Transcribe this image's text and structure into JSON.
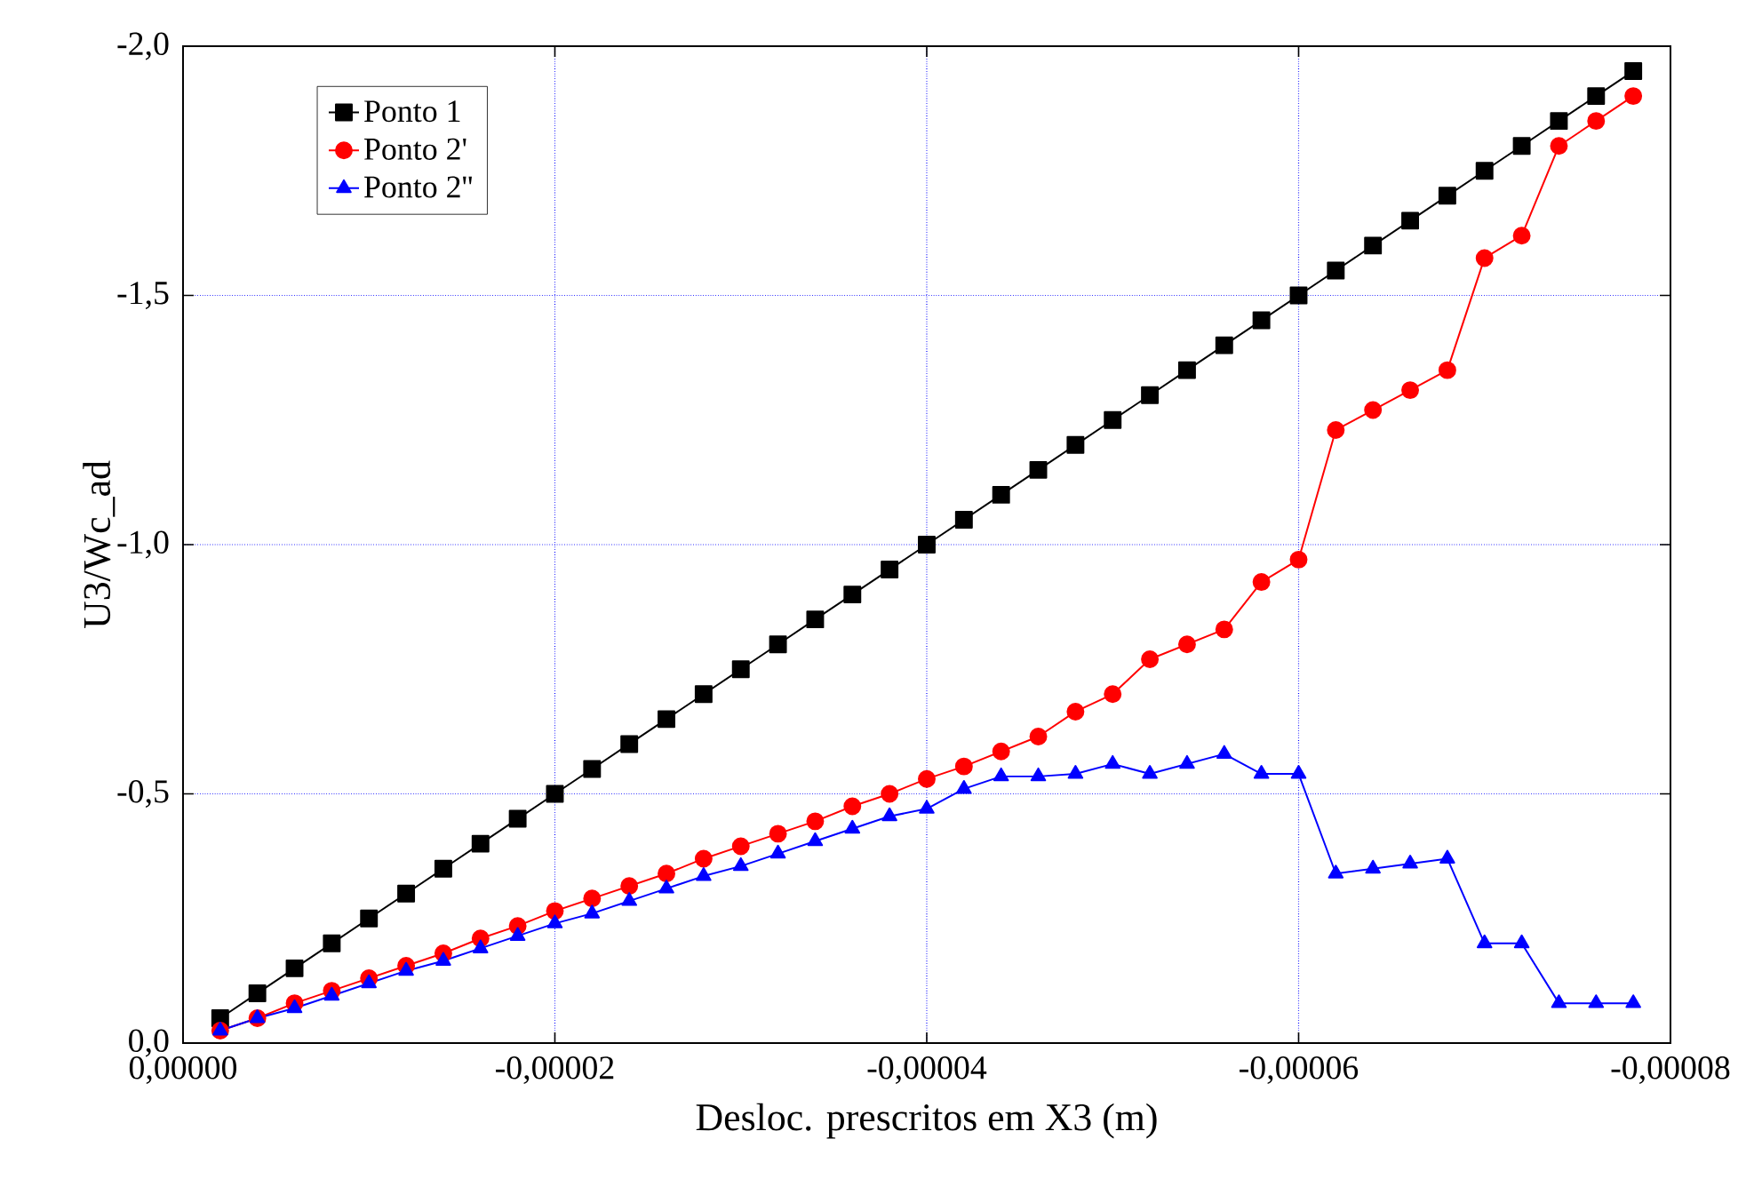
{
  "chart_data": {
    "type": "line",
    "xlabel": "Desloc. prescritos em X3 (m)",
    "ylabel": "U3/Wc_ad",
    "xlim": [
      0,
      -8e-05
    ],
    "ylim": [
      0,
      -2.0
    ],
    "xticks": [
      {
        "value": 0,
        "label": "0,00000"
      },
      {
        "value": -2e-05,
        "label": "-0,00002"
      },
      {
        "value": -4e-05,
        "label": "-0,00004"
      },
      {
        "value": -6e-05,
        "label": "-0,00006"
      },
      {
        "value": -8e-05,
        "label": "-0,00008"
      }
    ],
    "yticks": [
      {
        "value": 0,
        "label": "0,0"
      },
      {
        "value": -0.5,
        "label": "-0,5"
      },
      {
        "value": -1.0,
        "label": "-1,0"
      },
      {
        "value": -1.5,
        "label": "-1,5"
      },
      {
        "value": -2.0,
        "label": "-2,0"
      }
    ],
    "x": [
      -2e-06,
      -4e-06,
      -6e-06,
      -8e-06,
      -1e-05,
      -1.2e-05,
      -1.4e-05,
      -1.6e-05,
      -1.8e-05,
      -2e-05,
      -2.2e-05,
      -2.4e-05,
      -2.6e-05,
      -2.8e-05,
      -3e-05,
      -3.2e-05,
      -3.4e-05,
      -3.6e-05,
      -3.8e-05,
      -4e-05,
      -4.2e-05,
      -4.4e-05,
      -4.6e-05,
      -4.8e-05,
      -5e-05,
      -5.2e-05,
      -5.4e-05,
      -5.6e-05,
      -5.8e-05,
      -6e-05,
      -6.2e-05,
      -6.4e-05,
      -6.6e-05,
      -6.8e-05,
      -7e-05,
      -7.2e-05,
      -7.4e-05,
      -7.6e-05,
      -7.8e-05
    ],
    "grid": true,
    "legend": "top left",
    "line_style": "solid",
    "series": [
      {
        "name": "Ponto 1",
        "color": "#000000",
        "marker": "square",
        "values": [
          -0.05,
          -0.1,
          -0.15,
          -0.2,
          -0.25,
          -0.3,
          -0.35,
          -0.4,
          -0.45,
          -0.5,
          -0.55,
          -0.6,
          -0.65,
          -0.7,
          -0.75,
          -0.8,
          -0.85,
          -0.9,
          -0.95,
          -1.0,
          -1.05,
          -1.1,
          -1.15,
          -1.2,
          -1.25,
          -1.3,
          -1.35,
          -1.4,
          -1.45,
          -1.5,
          -1.55,
          -1.6,
          -1.65,
          -1.7,
          -1.75,
          -1.8,
          -1.85,
          -1.9,
          -1.95
        ]
      },
      {
        "name": "Ponto 2'",
        "color": "#ff0000",
        "marker": "circle",
        "values": [
          -0.025,
          -0.05,
          -0.08,
          -0.105,
          -0.13,
          -0.155,
          -0.18,
          -0.21,
          -0.235,
          -0.265,
          -0.29,
          -0.315,
          -0.34,
          -0.37,
          -0.395,
          -0.42,
          -0.445,
          -0.475,
          -0.5,
          -0.53,
          -0.555,
          -0.585,
          -0.615,
          -0.665,
          -0.7,
          -0.77,
          -0.8,
          -0.83,
          -0.925,
          -0.97,
          -1.23,
          -1.27,
          -1.31,
          -1.35,
          -1.575,
          -1.62,
          -1.8,
          -1.85,
          -1.9
        ]
      },
      {
        "name": "Ponto 2''",
        "color": "#0000ff",
        "marker": "triangle",
        "values": [
          -0.025,
          -0.05,
          -0.07,
          -0.095,
          -0.12,
          -0.145,
          -0.165,
          -0.19,
          -0.215,
          -0.24,
          -0.26,
          -0.285,
          -0.31,
          -0.335,
          -0.355,
          -0.38,
          -0.405,
          -0.43,
          -0.455,
          -0.47,
          -0.51,
          -0.535,
          -0.535,
          -0.54,
          -0.56,
          -0.54,
          -0.56,
          -0.58,
          -0.54,
          -0.54,
          -0.34,
          -0.35,
          -0.36,
          -0.37,
          -0.2,
          -0.2,
          -0.08,
          -0.08,
          -0.08
        ]
      }
    ]
  }
}
